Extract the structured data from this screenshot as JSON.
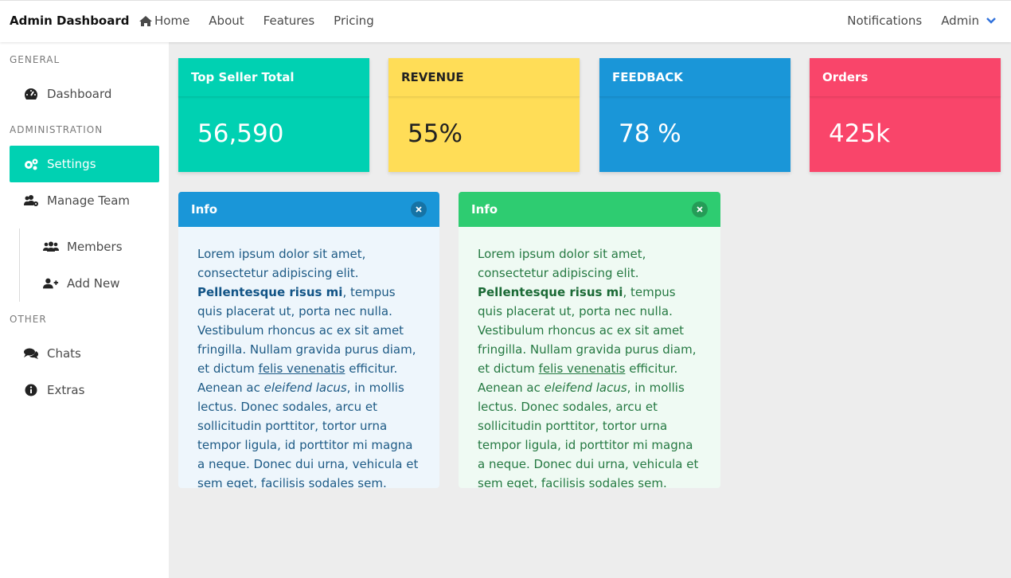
{
  "navbar": {
    "brand": "Admin Dashboard",
    "links": [
      "Home",
      "About",
      "Features",
      "Pricing"
    ],
    "notifications": "Notifications",
    "user": "Admin"
  },
  "sidebar": {
    "general_label": "GENERAL",
    "dashboard": "Dashboard",
    "administration_label": "ADMINISTRATION",
    "settings": "Settings",
    "manage_team": "Manage Team",
    "members": "Members",
    "add_new": "Add New",
    "other_label": "OTHER",
    "chats": "Chats",
    "extras": "Extras"
  },
  "stats": [
    {
      "title": "Top Seller Total",
      "value": "56,590",
      "color": "#00d1b2"
    },
    {
      "title": "REVENUE",
      "value": "55%",
      "color": "#ffdd57"
    },
    {
      "title": "FEEDBACK",
      "value": "78 %",
      "color": "#1a96d8"
    },
    {
      "title": "Orders",
      "value": "425k",
      "color": "#f9456a"
    }
  ],
  "messages": [
    {
      "title": "Info",
      "text1": "Lorem ipsum dolor sit amet, consectetur adipiscing elit.",
      "bold": "Pellentesque risus mi",
      "text2": ", tempus quis placerat ut, porta nec nulla. Vestibulum rhoncus ac ex sit amet fringilla. Nullam gravida purus diam, et dictum ",
      "link": "felis venenatis",
      "text3": " efficitur. Aenean ac ",
      "italic": "eleifend lacus",
      "text4": ", in mollis lectus. Donec sodales, arcu et sollicitudin porttitor, tortor urna tempor ligula, id porttitor mi magna a neque. Donec dui urna, vehicula et sem eget, facilisis sodales sem.",
      "color": "#1a96d8"
    },
    {
      "title": "Info",
      "text1": "Lorem ipsum dolor sit amet, consectetur adipiscing elit.",
      "bold": "Pellentesque risus mi",
      "text2": ", tempus quis placerat ut, porta nec nulla. Vestibulum rhoncus ac ex sit amet fringilla. Nullam gravida purus diam, et dictum ",
      "link": "felis venenatis",
      "text3": " efficitur. Aenean ac ",
      "italic": "eleifend lacus",
      "text4": ", in mollis lectus. Donec sodales, arcu et sollicitudin porttitor, tortor urna tempor ligula, id porttitor mi magna a neque. Donec dui urna, vehicula et sem eget, facilisis sodales sem.",
      "color": "#2ecc71"
    }
  ]
}
